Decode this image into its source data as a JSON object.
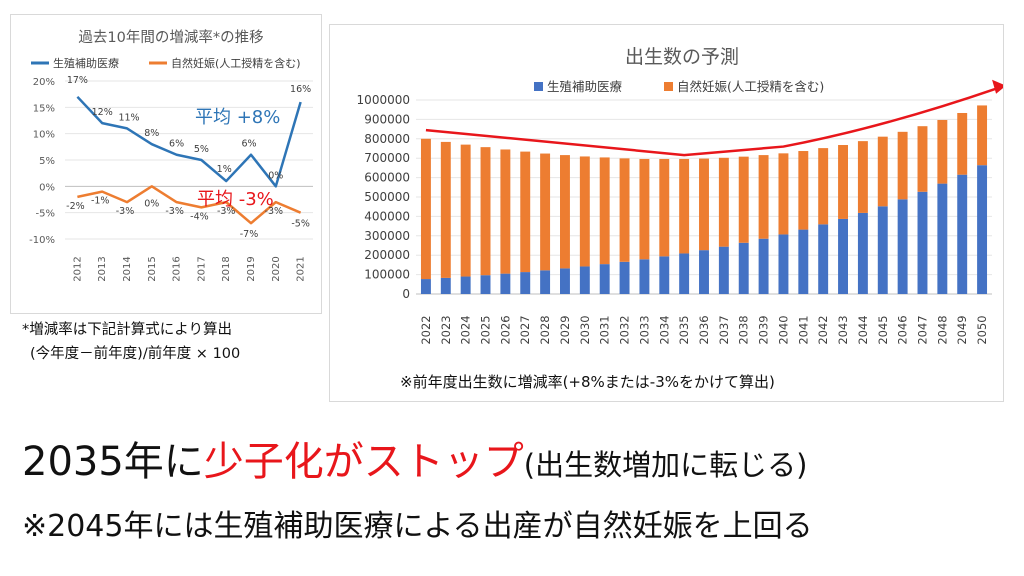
{
  "chart_data": [
    {
      "type": "line",
      "title": "過去10年間の増減率*の推移",
      "legend": [
        "生殖補助医療",
        "自然妊娠(人工授精を含む)"
      ],
      "categories": [
        "2012",
        "2013",
        "2014",
        "2015",
        "2016",
        "2017",
        "2018",
        "2019",
        "2020",
        "2021"
      ],
      "ylim": [
        -10,
        20
      ],
      "yticks": [
        "20%",
        "15%",
        "10%",
        "5%",
        "0%",
        "-5%",
        "-10%"
      ],
      "series": [
        {
          "name": "生殖補助医療",
          "color": "#2e75b6",
          "values": [
            17,
            12,
            11,
            8,
            6,
            5,
            1,
            6,
            0,
            16
          ],
          "labels": [
            "17%",
            "12%",
            "11%",
            "8%",
            "6%",
            "5%",
            "1%",
            "6%",
            "0%",
            "16%"
          ]
        },
        {
          "name": "自然妊娠(人工授精を含む)",
          "color": "#ed7d31",
          "values": [
            -2,
            -1,
            -3,
            0,
            -3,
            -4,
            -3,
            -7,
            -3,
            -5
          ],
          "labels": [
            "-2%",
            "-1%",
            "-3%",
            "0%",
            "-3%",
            "-4%",
            "-3%",
            "-7%",
            "-3%",
            "-5%"
          ]
        }
      ],
      "annotations": [
        {
          "text": "平均 +8%",
          "color": "#2e75b6"
        },
        {
          "text": "平均 -3%",
          "color": "#e8161b"
        }
      ]
    },
    {
      "type": "bar",
      "stacked": true,
      "title": "出生数の予測",
      "legend": [
        "生殖補助医療",
        "自然妊娠(人工授精を含む)"
      ],
      "ylim": [
        0,
        1000000
      ],
      "yticks": [
        "1000000",
        "900000",
        "800000",
        "700000",
        "600000",
        "500000",
        "400000",
        "300000",
        "200000",
        "100000",
        "0"
      ],
      "categories": [
        "2022",
        "2023",
        "2024",
        "2025",
        "2026",
        "2027",
        "2028",
        "2029",
        "2030",
        "2031",
        "2032",
        "2033",
        "2034",
        "2035",
        "2036",
        "2037",
        "2038",
        "2039",
        "2040",
        "2041",
        "2042",
        "2043",
        "2044",
        "2045",
        "2046",
        "2047",
        "2048",
        "2049",
        "2050"
      ],
      "series": [
        {
          "name": "生殖補助医療",
          "color": "#4472c4",
          "values": [
            77000,
            83000,
            90000,
            97000,
            105000,
            113000,
            122000,
            132000,
            142000,
            154000,
            166000,
            179000,
            194000,
            209000,
            226000,
            244000,
            264000,
            285000,
            307000,
            332000,
            359000,
            387000,
            418000,
            452000,
            488000,
            527000,
            569000,
            615000,
            664000
          ]
        },
        {
          "name": "自然妊娠(人工授精を含む)",
          "color": "#ed7d31",
          "values": [
            723000,
            701000,
            680000,
            660000,
            640000,
            621000,
            602000,
            584000,
            567000,
            550000,
            533000,
            517000,
            502000,
            487000,
            472000,
            458000,
            444000,
            431000,
            418000,
            405000,
            393000,
            381000,
            370000,
            359000,
            348000,
            338000,
            328000,
            318000,
            308000
          ]
        }
      ],
      "trend_arrow_color": "#e8161b",
      "footnote": "※前年度出生数に増減率(+8%または-3%をかけて算出)"
    }
  ],
  "notes": {
    "line1": "*増減率は下記計算式により算出",
    "line2": "(今年度－前年度)/前年度 × 100"
  },
  "headline": {
    "part1": "2035年に",
    "part2": "少子化がストップ",
    "part3": "(出生数増加に転じる)"
  },
  "subline": "※2045年には生殖補助医療による出産が自然妊娠を上回る"
}
